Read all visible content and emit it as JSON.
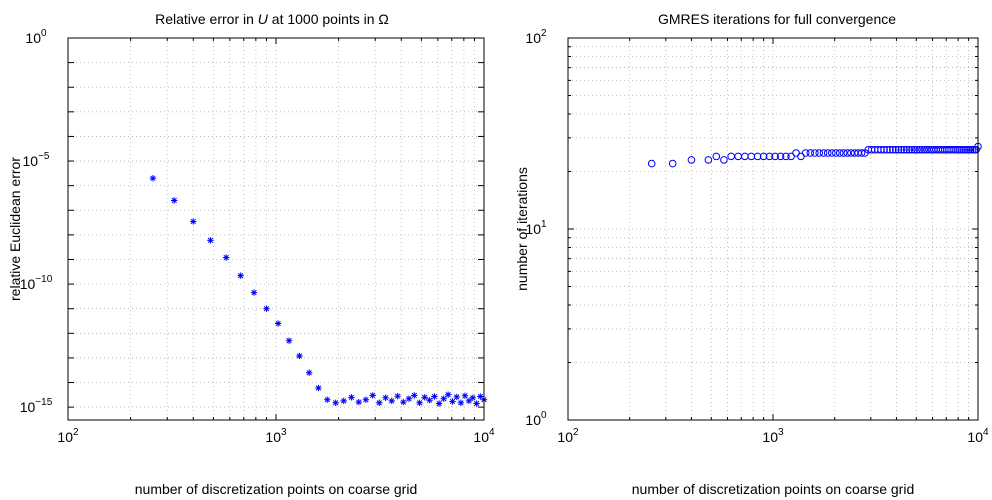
{
  "chart_data": [
    {
      "type": "scatter",
      "title": "Relative error in U at 1000 points in Ω",
      "title_parts": [
        "Relative error in ",
        "U",
        " at 1000 points in Ω"
      ],
      "xlabel": "number of discretization points on coarse grid",
      "ylabel": "relative Euclidean error",
      "xscale": "log",
      "yscale": "log",
      "xlim": [
        100,
        10000
      ],
      "ylim": [
        3e-16,
        1
      ],
      "grid": true,
      "marker": "asterisk",
      "color": "#0000ff",
      "xticks": [
        {
          "value": 100,
          "base": "10",
          "exp": "2"
        },
        {
          "value": 1000,
          "base": "10",
          "exp": "3"
        },
        {
          "value": 10000,
          "base": "10",
          "exp": "4"
        }
      ],
      "yticks": [
        {
          "value": 1e-15,
          "base": "10",
          "exp": "−15"
        },
        {
          "value": 1e-10,
          "base": "10",
          "exp": "−10"
        },
        {
          "value": 1e-05,
          "base": "10",
          "exp": "−5"
        },
        {
          "value": 1,
          "base": "10",
          "exp": "0"
        }
      ],
      "series": [
        {
          "x": [
            256,
            324,
            400,
            484,
            576,
            676,
            784,
            900,
            1024,
            1156,
            1296,
            1444,
            1600,
            1764,
            1936,
            2116,
            2304,
            2500,
            2704,
            2916,
            3136,
            3364,
            3600,
            3844,
            4096,
            4356,
            4624,
            4900,
            5184,
            5476,
            5776,
            6084,
            6400,
            6724,
            7056,
            7396,
            7744,
            8100,
            8464,
            8836,
            9216,
            9604,
            10000
          ],
          "y": [
            2e-06,
            2.5e-07,
            3.5e-08,
            6e-09,
            1.2e-09,
            2.2e-10,
            4.5e-11,
            1e-11,
            2.5e-12,
            5e-13,
            1.2e-13,
            2.5e-14,
            6e-15,
            2e-15,
            1.5e-15,
            1.8e-15,
            2.5e-15,
            1.6e-15,
            2e-15,
            3e-15,
            1.5e-15,
            2.4e-15,
            1.8e-15,
            2.8e-15,
            1.6e-15,
            2.2e-15,
            3e-15,
            1.5e-15,
            2.5e-15,
            1.9e-15,
            2.7e-15,
            1.4e-15,
            2.2e-15,
            3.2e-15,
            1.7e-15,
            2.6e-15,
            1.5e-15,
            2.9e-15,
            1.8e-15,
            2.4e-15,
            1.4e-15,
            2.7e-15,
            2e-15
          ]
        }
      ]
    },
    {
      "type": "scatter",
      "title": "GMRES iterations for full convergence",
      "title_parts": [
        "GMRES iterations for full convergence",
        "",
        ""
      ],
      "xlabel": "number of discretization points on coarse grid",
      "ylabel": "number of iterations",
      "xscale": "log",
      "yscale": "log",
      "xlim": [
        100,
        10000
      ],
      "ylim": [
        1,
        100
      ],
      "grid": true,
      "marker": "circle",
      "color": "#0000ff",
      "xticks": [
        {
          "value": 100,
          "base": "10",
          "exp": "2"
        },
        {
          "value": 1000,
          "base": "10",
          "exp": "3"
        },
        {
          "value": 10000,
          "base": "10",
          "exp": "4"
        }
      ],
      "yticks": [
        {
          "value": 1,
          "base": "10",
          "exp": "0"
        },
        {
          "value": 10,
          "base": "10",
          "exp": "1"
        },
        {
          "value": 100,
          "base": "10",
          "exp": "2"
        }
      ],
      "series": [
        {
          "x": [
            256,
            324,
            400,
            484,
            529,
            576,
            625,
            676,
            729,
            784,
            841,
            900,
            961,
            1024,
            1089,
            1156,
            1225,
            1296,
            1369,
            1444,
            1521,
            1600,
            1681,
            1764,
            1849,
            1936,
            2025,
            2116,
            2209,
            2304,
            2401,
            2500,
            2601,
            2704,
            2809,
            2916,
            3025,
            3136,
            3249,
            3364,
            3481,
            3600,
            3721,
            3844,
            3969,
            4096,
            4225,
            4356,
            4489,
            4624,
            4761,
            4900,
            5041,
            5184,
            5329,
            5476,
            5625,
            5776,
            5929,
            6084,
            6241,
            6400,
            6561,
            6724,
            6889,
            7056,
            7225,
            7396,
            7569,
            7744,
            7921,
            8100,
            8281,
            8464,
            8649,
            8836,
            9025,
            9216,
            9409,
            9604,
            9801,
            10000
          ],
          "y": [
            22,
            22,
            23,
            23,
            24,
            23,
            24,
            24,
            24,
            24,
            24,
            24,
            24,
            24,
            24,
            24,
            24,
            25,
            24,
            25,
            25,
            25,
            25,
            25,
            25,
            25,
            25,
            25,
            25,
            25,
            25,
            25,
            25,
            25,
            25,
            26,
            26,
            26,
            26,
            26,
            26,
            26,
            26,
            26,
            26,
            26,
            26,
            26,
            26,
            26,
            26,
            26,
            26,
            26,
            26,
            26,
            26,
            26,
            26,
            26,
            26,
            26,
            26,
            26,
            26,
            26,
            26,
            26,
            26,
            26,
            26,
            26,
            26,
            26,
            26,
            26,
            26,
            26,
            26,
            26,
            26,
            27
          ]
        }
      ]
    }
  ]
}
